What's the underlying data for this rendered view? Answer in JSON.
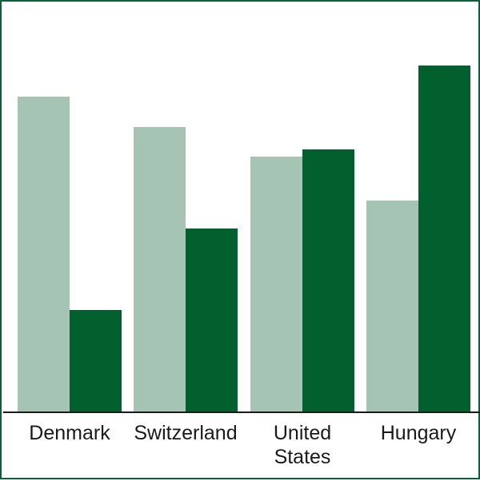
{
  "chart_data": {
    "type": "bar",
    "title": "",
    "xlabel": "",
    "ylabel": "",
    "categories": [
      [
        "Denmark"
      ],
      [
        "Switzerland"
      ],
      [
        "United",
        "States"
      ],
      [
        "Hungary"
      ]
    ],
    "series": [
      {
        "values": [
          395,
          357,
          320,
          265
        ],
        "color": "#a6c4b4"
      },
      {
        "values": [
          128,
          230,
          329,
          434
        ],
        "color": "#02602f"
      }
    ],
    "ylim": [
      0,
      440
    ],
    "grid": false,
    "legend": "none",
    "baseline_color": "#1a1a1a",
    "frame_color": "#0c5f38"
  }
}
